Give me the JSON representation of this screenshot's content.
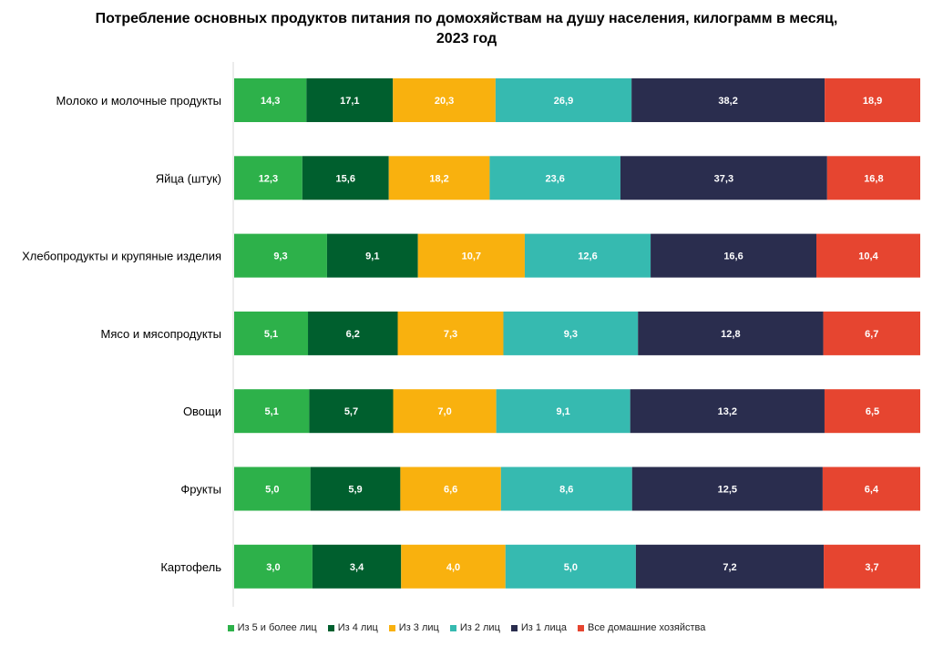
{
  "chart_data": {
    "type": "bar",
    "orientation": "horizontal",
    "stacked": true,
    "title_lines": [
      "Потребление основных продуктов питания по домохяйствам на душу населения, килограмм в месяц,",
      "2023 год"
    ],
    "categories": [
      "Молоко и молочные продукты",
      "Яйца (штук)",
      "Хлебопродукты и крупяные изделия",
      "Мясо и мясопродукты",
      "Овощи",
      "Фрукты",
      "Картофель"
    ],
    "series": [
      {
        "name": "Из 5 и более лиц",
        "color": "#2db14a",
        "values": [
          14.3,
          12.3,
          9.3,
          5.1,
          5.1,
          5.0,
          3.0
        ],
        "labels": [
          "14,3",
          "12,3",
          "9,3",
          "5,1",
          "5,1",
          "5,0",
          "3,0"
        ]
      },
      {
        "name": "Из 4 лиц",
        "color": "#005f2e",
        "values": [
          17.1,
          15.6,
          9.1,
          6.2,
          5.7,
          5.9,
          3.4
        ],
        "labels": [
          "17,1",
          "15,6",
          "9,1",
          "6,2",
          "5,7",
          "5,9",
          "3,4"
        ]
      },
      {
        "name": "Из 3 лиц",
        "color": "#f9b10e",
        "values": [
          20.3,
          18.2,
          10.7,
          7.3,
          7.0,
          6.6,
          4.0
        ],
        "labels": [
          "20,3",
          "18,2",
          "10,7",
          "7,3",
          "7,0",
          "6,6",
          "4,0"
        ]
      },
      {
        "name": "Из 2 лиц",
        "color": "#36bab0",
        "values": [
          26.9,
          23.6,
          12.6,
          9.3,
          9.1,
          8.6,
          5.0
        ],
        "labels": [
          "26,9",
          "23,6",
          "12,6",
          "9,3",
          "9,1",
          "8,6",
          "5,0"
        ]
      },
      {
        "name": "Из 1 лица",
        "color": "#2a2d4e",
        "values": [
          38.2,
          37.3,
          16.6,
          12.8,
          13.2,
          12.5,
          7.2
        ],
        "labels": [
          "38,2",
          "37,3",
          "16,6",
          "12,8",
          "13,2",
          "12,5",
          "7,2"
        ]
      },
      {
        "name": "Все домашние хозяйства",
        "color": "#e64530",
        "values": [
          18.9,
          16.8,
          10.4,
          6.7,
          6.5,
          6.4,
          3.7
        ],
        "labels": [
          "18,9",
          "16,8",
          "10,4",
          "6,7",
          "6,5",
          "6,4",
          "3,7"
        ]
      }
    ],
    "legend_position": "bottom",
    "grid": false,
    "value_axis_shown": false
  }
}
